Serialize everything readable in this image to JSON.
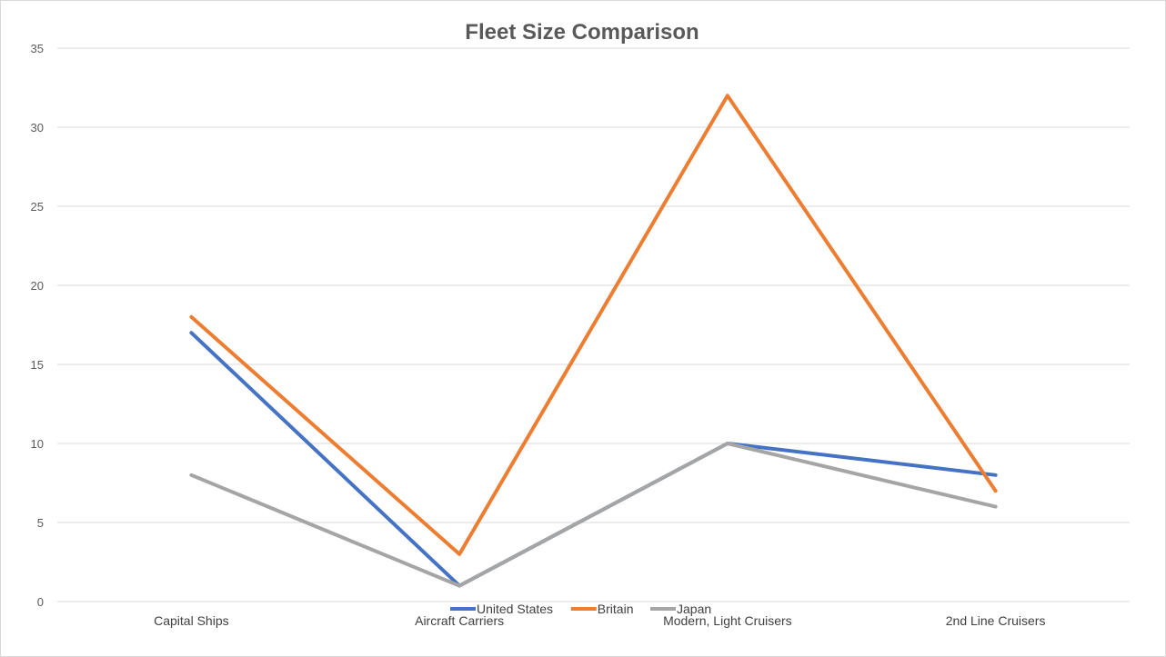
{
  "chart_data": {
    "type": "line",
    "title": "Fleet Size Comparison",
    "categories": [
      "Capital Ships",
      "Aircraft Carriers",
      "Modern, Light Cruisers",
      "2nd Line Cruisers"
    ],
    "series": [
      {
        "name": "United States",
        "color": "#4472c4",
        "values": [
          17,
          1,
          10,
          8
        ]
      },
      {
        "name": "Britain",
        "color": "#ed7d31",
        "values": [
          18,
          3,
          32,
          7
        ]
      },
      {
        "name": "Japan",
        "color": "#a5a5a5",
        "values": [
          8,
          1,
          10,
          6
        ]
      }
    ],
    "ylim": [
      0,
      35
    ],
    "yticks": [
      0,
      5,
      10,
      15,
      20,
      25,
      30,
      35
    ],
    "grid": true,
    "legend_position": "bottom"
  }
}
